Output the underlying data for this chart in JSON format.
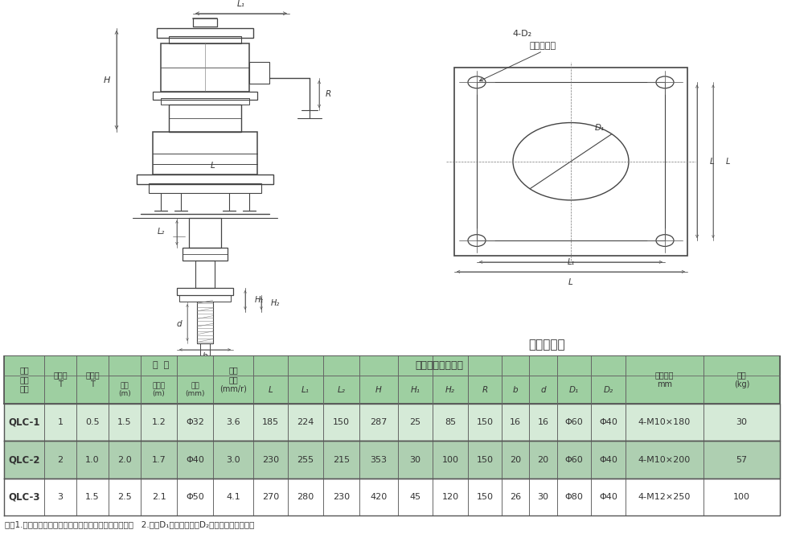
{
  "bg_color": "#ffffff",
  "header_bg": "#9dc8a0",
  "row1_bg": "#d4ead6",
  "row2_bg": "#b8d9bc",
  "row3_bg": "#ffffff",
  "data_rows": [
    [
      "QLC-1",
      "1",
      "0.5",
      "1.5",
      "1.2",
      "Φ32",
      "3.6",
      "185",
      "224",
      "150",
      "287",
      "25",
      "85",
      "150",
      "16",
      "16",
      "Φ60",
      "Φ40",
      "4-M10×180",
      "30"
    ],
    [
      "QLC-2",
      "2",
      "1.0",
      "2.0",
      "1.7",
      "Φ40",
      "3.0",
      "230",
      "255",
      "215",
      "353",
      "30",
      "100",
      "150",
      "20",
      "20",
      "Φ60",
      "Φ40",
      "4-M10×200",
      "57"
    ],
    [
      "QLC-3",
      "3",
      "1.5",
      "2.5",
      "2.1",
      "Φ50",
      "4.1",
      "270",
      "280",
      "230",
      "420",
      "45",
      "120",
      "150",
      "26",
      "30",
      "Φ80",
      "Φ40",
      "4-M12×250",
      "100"
    ]
  ],
  "note": "注：1.启闭速度指的是手柄转一圈阀门提升或下降的距离   2.参数D₁是过螺杠孔，D₂是二次浇注预留孔。"
}
